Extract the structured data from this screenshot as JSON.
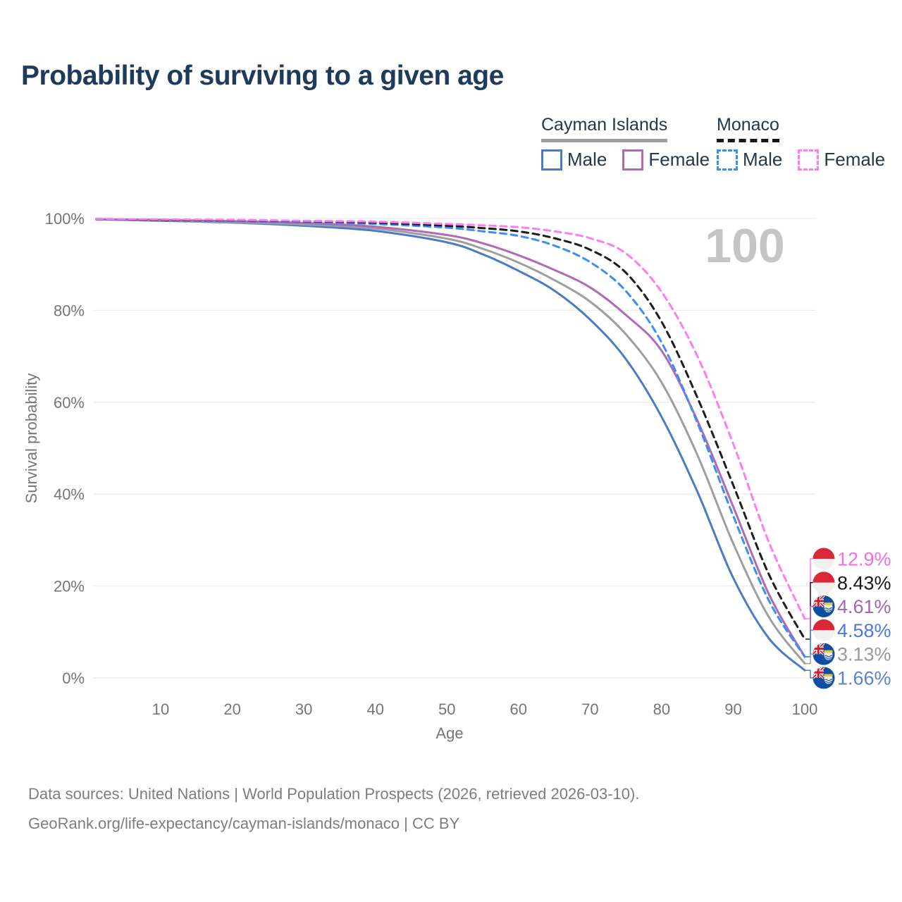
{
  "title": "Probability of surviving to a given age",
  "watermark": "100",
  "colors": {
    "title_text": "#1e3b5c",
    "legend_text": "#24384a",
    "axis_text": "#757575",
    "gridline": "#ececec",
    "watermark": "#c5c5c5",
    "footer_text": "#7d7d7d"
  },
  "legend": {
    "groups": [
      {
        "name": "Cayman Islands",
        "line_style": "solid",
        "line_color": "#9e9e9e",
        "items": [
          {
            "label": "Male",
            "color": "#4a7bc4",
            "dashed": false
          },
          {
            "label": "Female",
            "color": "#b069b5",
            "dashed": false
          }
        ]
      },
      {
        "name": "Monaco",
        "line_style": "dashed",
        "line_color": "#161616",
        "items": [
          {
            "label": "Male",
            "color": "#3b8df7",
            "dashed": true
          },
          {
            "label": "Female",
            "color": "#ff7cf0",
            "dashed": true
          }
        ]
      }
    ]
  },
  "axes": {
    "xlabel": "Age",
    "ylabel": "Survival probability",
    "xticks": [
      10,
      20,
      30,
      40,
      50,
      60,
      70,
      80,
      90,
      100
    ],
    "yticks": [
      "0%",
      "20%",
      "40%",
      "60%",
      "80%",
      "100%"
    ],
    "xlim": [
      0,
      100
    ],
    "ylim": [
      0,
      100
    ],
    "grid": "horizontal-only",
    "legend_position": "top-right"
  },
  "chart_data": {
    "type": "line",
    "title": "Probability of surviving to a given age",
    "xlabel": "Age",
    "ylabel": "Survival probability",
    "xlim": [
      0,
      100
    ],
    "ylim": [
      0,
      100
    ],
    "x": [
      1,
      10,
      20,
      30,
      40,
      50,
      55,
      60,
      65,
      70,
      75,
      80,
      85,
      90,
      95,
      100
    ],
    "series": [
      {
        "name": "Cayman Islands Male",
        "country": "Cayman Islands",
        "sex": "Male",
        "color": "#4a7bc4",
        "label_color": "#5c81d4",
        "dashed": false,
        "flag": "cayman",
        "end_label": "1.66%",
        "values": [
          99.8,
          99.5,
          99.1,
          98.4,
          97.3,
          94.8,
          92.2,
          88.6,
          84.3,
          78.0,
          69.4,
          56.8,
          40.5,
          21.8,
          8.6,
          1.66
        ]
      },
      {
        "name": "Cayman Islands Total",
        "country": "Cayman Islands",
        "sex": "Total",
        "color": "#9e9e9e",
        "label_color": "#9a9a9a",
        "dashed": false,
        "flag": "cayman",
        "end_label": "3.13%",
        "values": [
          99.8,
          99.6,
          99.2,
          98.7,
          97.8,
          95.6,
          93.4,
          90.4,
          86.6,
          81.9,
          74.8,
          64.3,
          48.5,
          29.3,
          13.2,
          3.13
        ]
      },
      {
        "name": "Cayman Islands Female",
        "country": "Cayman Islands",
        "sex": "Female",
        "color": "#b069b5",
        "label_color": "#a763b1",
        "dashed": false,
        "flag": "cayman",
        "end_label": "4.61%",
        "values": [
          99.8,
          99.7,
          99.4,
          99.0,
          98.2,
          96.4,
          94.6,
          92.0,
          88.8,
          85.0,
          79.0,
          71.2,
          56.0,
          37.3,
          18.2,
          4.61
        ]
      },
      {
        "name": "Monaco Male",
        "country": "Monaco",
        "sex": "Male",
        "color": "#3b8df7",
        "label_color": "#4a78e0",
        "dashed": true,
        "flag": "monaco",
        "end_label": "4.58%",
        "values": [
          99.8,
          99.7,
          99.5,
          99.2,
          98.8,
          98.0,
          97.2,
          96.2,
          94.1,
          90.5,
          84.2,
          73.0,
          55.5,
          35.3,
          16.8,
          4.58
        ]
      },
      {
        "name": "Monaco Total",
        "country": "Monaco",
        "sex": "Total",
        "color": "#1c1c1c",
        "label_color": "#191919",
        "dashed": true,
        "flag": "monaco",
        "end_label": "8.43%",
        "values": [
          99.9,
          99.7,
          99.6,
          99.4,
          99.1,
          98.4,
          97.9,
          97.2,
          95.7,
          93.2,
          88.2,
          77.5,
          61.0,
          42.0,
          22.5,
          8.43
        ]
      },
      {
        "name": "Monaco Female",
        "country": "Monaco",
        "sex": "Female",
        "color": "#ff7cf0",
        "label_color": "#f06ee6",
        "dashed": true,
        "flag": "monaco",
        "end_label": "12.9%",
        "values": [
          99.9,
          99.8,
          99.7,
          99.5,
          99.3,
          98.8,
          98.5,
          98.1,
          97.2,
          95.7,
          92.4,
          84.0,
          70.0,
          51.0,
          29.5,
          12.9
        ]
      }
    ]
  },
  "footer": {
    "line1": "Data sources: United Nations | World Population Prospects (2026, retrieved 2026-03-10).",
    "line2": "GeoRank.org/life-expectancy/cayman-islands/monaco | CC BY"
  }
}
